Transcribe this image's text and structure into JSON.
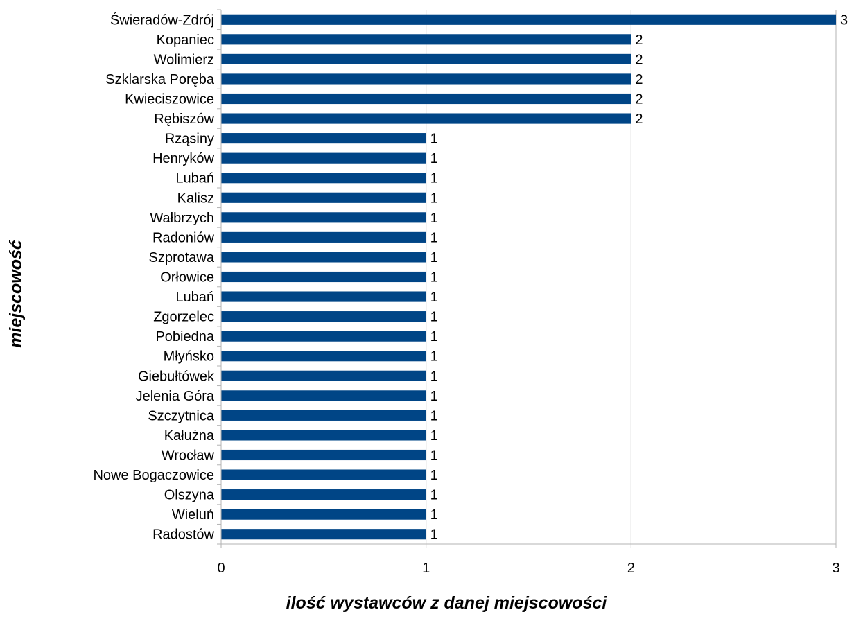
{
  "chart_data": {
    "type": "bar",
    "orientation": "horizontal",
    "categories": [
      "Świeradów-Zdrój",
      "Kopaniec",
      "Wolimierz",
      "Szklarska Poręba",
      "Kwieciszowice",
      "Rębiszów",
      "Rząsiny",
      "Henryków",
      "Lubań",
      "Kalisz",
      "Wałbrzych",
      "Radoniów",
      "Szprotawa",
      "Orłowice",
      "Lubań",
      "Zgorzelec",
      "Pobiedna",
      "Młyńsko",
      "Giebułtówek",
      "Jelenia Góra",
      "Szczytnica",
      "Kałużna",
      "Wrocław",
      "Nowe Bogaczowice",
      "Olszyna",
      "Wieluń",
      "Radostów"
    ],
    "values": [
      3,
      2,
      2,
      2,
      2,
      2,
      1,
      1,
      1,
      1,
      1,
      1,
      1,
      1,
      1,
      1,
      1,
      1,
      1,
      1,
      1,
      1,
      1,
      1,
      1,
      1,
      1
    ],
    "xlabel": "ilość wystawców z danej miejscowości",
    "ylabel": "miejscowość",
    "xlim": [
      0,
      3
    ],
    "xticks": [
      "0",
      "1",
      "2",
      "3"
    ],
    "grid": "vertical",
    "data_labels": true,
    "bar_color": "#004586",
    "grid_color": "#b3b3b3"
  }
}
